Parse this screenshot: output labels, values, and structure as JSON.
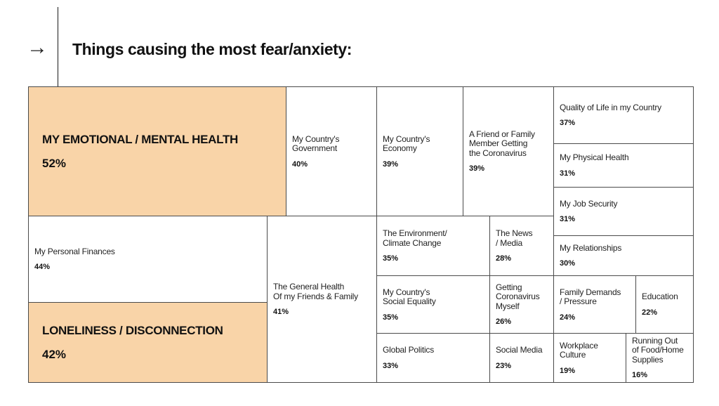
{
  "header": {
    "arrow_icon": "arrow-right-icon",
    "title": "Things causing the most fear/anxiety:"
  },
  "colors": {
    "highlight": "#f9d4a8",
    "border": "#4a4a4a"
  },
  "chart_data": {
    "type": "treemap",
    "title": "Things causing the most fear/anxiety:",
    "unit": "%",
    "items": [
      {
        "label": "MY EMOTIONAL / MENTAL HEALTH",
        "value": 52,
        "display": "52%",
        "highlight": true
      },
      {
        "label": "My Country's\nGovernment",
        "value": 40,
        "display": "40%"
      },
      {
        "label": "My Country's\nEconomy",
        "value": 39,
        "display": "39%"
      },
      {
        "label": "A Friend or Family\nMember Getting\nthe Coronavirus",
        "value": 39,
        "display": "39%"
      },
      {
        "label": "Quality of Life in my Country",
        "value": 37,
        "display": "37%"
      },
      {
        "label": "My Physical Health",
        "value": 31,
        "display": "31%"
      },
      {
        "label": "My Job Security",
        "value": 31,
        "display": "31%"
      },
      {
        "label": "My Personal Finances",
        "value": 44,
        "display": "44%"
      },
      {
        "label": "LONELINESS / DISCONNECTION",
        "value": 42,
        "display": "42%",
        "highlight": true
      },
      {
        "label": "The General Health\nOf my Friends & Family",
        "value": 41,
        "display": "41%"
      },
      {
        "label": "The Environment/\nClimate Change",
        "value": 35,
        "display": "35%"
      },
      {
        "label": "The News\n/ Media",
        "value": 28,
        "display": "28%"
      },
      {
        "label": "My Relationships",
        "value": 30,
        "display": "30%"
      },
      {
        "label": "My Country's\nSocial Equality",
        "value": 35,
        "display": "35%"
      },
      {
        "label": "Getting\nCoronavirus\nMyself",
        "value": 26,
        "display": "26%"
      },
      {
        "label": "Family Demands\n/ Pressure",
        "value": 24,
        "display": "24%"
      },
      {
        "label": "Education",
        "value": 22,
        "display": "22%"
      },
      {
        "label": "Global Politics",
        "value": 33,
        "display": "33%"
      },
      {
        "label": "Social Media",
        "value": 23,
        "display": "23%"
      },
      {
        "label": "Workplace\nCulture",
        "value": 19,
        "display": "19%"
      },
      {
        "label": "Running Out\nof Food/Home\nSupplies",
        "value": 16,
        "display": "16%"
      }
    ]
  }
}
